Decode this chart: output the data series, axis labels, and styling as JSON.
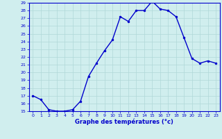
{
  "hours": [
    0,
    1,
    2,
    3,
    4,
    5,
    6,
    7,
    8,
    9,
    10,
    11,
    12,
    13,
    14,
    15,
    16,
    17,
    18,
    19,
    20,
    21,
    22,
    23
  ],
  "temps": [
    17.0,
    16.5,
    15.2,
    15.0,
    15.0,
    15.2,
    16.3,
    19.5,
    21.2,
    22.8,
    24.2,
    27.2,
    26.6,
    28.0,
    28.0,
    29.2,
    28.2,
    28.0,
    27.2,
    24.5,
    21.8,
    21.2,
    21.5,
    21.2
  ],
  "line_color": "#0000cc",
  "marker": "o",
  "marker_size": 2,
  "bg_color": "#d0eeee",
  "grid_color": "#b0d8d8",
  "xlabel": "Graphe des températures (°c)",
  "xlabel_color": "#0000cc",
  "tick_color": "#0000cc",
  "ylim": [
    15,
    29
  ],
  "xlim": [
    -0.5,
    23.5
  ],
  "yticks": [
    15,
    16,
    17,
    18,
    19,
    20,
    21,
    22,
    23,
    24,
    25,
    26,
    27,
    28,
    29
  ],
  "xticks": [
    0,
    1,
    2,
    3,
    4,
    5,
    6,
    7,
    8,
    9,
    10,
    11,
    12,
    13,
    14,
    15,
    16,
    17,
    18,
    19,
    20,
    21,
    22,
    23
  ]
}
